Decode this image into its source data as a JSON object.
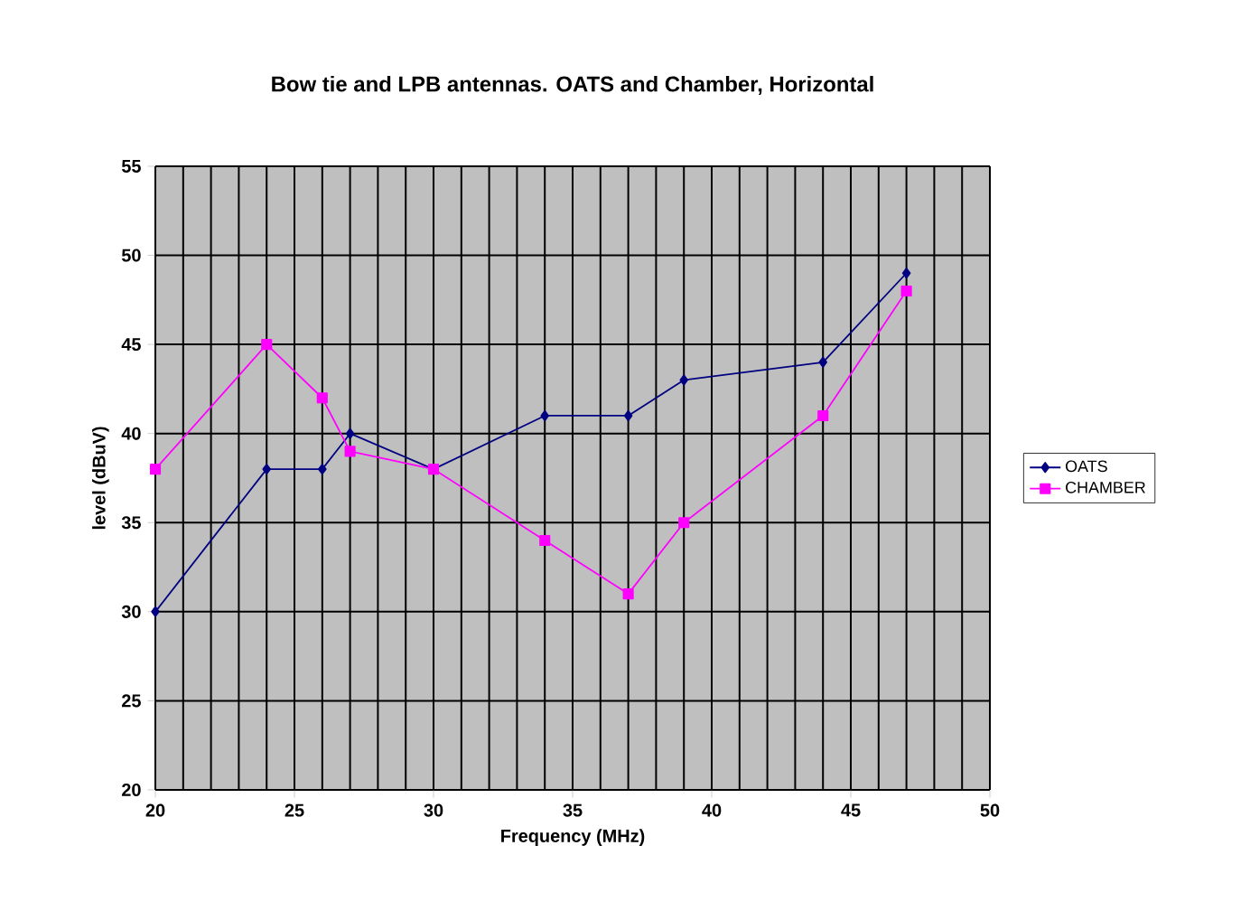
{
  "chart_data": {
    "type": "line",
    "title": "Bow tie and LPB antennas. OATS and Chamber, Horizontal",
    "xlabel": "Frequency (MHz)",
    "ylabel": "level (dBuV)",
    "x": [
      20,
      24,
      26,
      27,
      30,
      34,
      37,
      39,
      44,
      47
    ],
    "series": [
      {
        "name": "OATS",
        "color": "#000080",
        "marker": "diamond",
        "values": [
          30,
          38,
          38,
          40,
          38,
          41,
          41,
          43,
          44,
          49
        ]
      },
      {
        "name": "CHAMBER",
        "color": "#ff00ff",
        "marker": "square",
        "values": [
          38,
          45,
          42,
          39,
          38,
          34,
          31,
          35,
          41,
          48
        ]
      }
    ],
    "xlim": [
      20,
      50
    ],
    "xticks": [
      20,
      25,
      30,
      35,
      40,
      45,
      50
    ],
    "ylim": [
      20,
      55
    ],
    "yticks": [
      20,
      25,
      30,
      35,
      40,
      45,
      50,
      55
    ],
    "grid": true,
    "legend": "right",
    "line_style": "solid"
  }
}
